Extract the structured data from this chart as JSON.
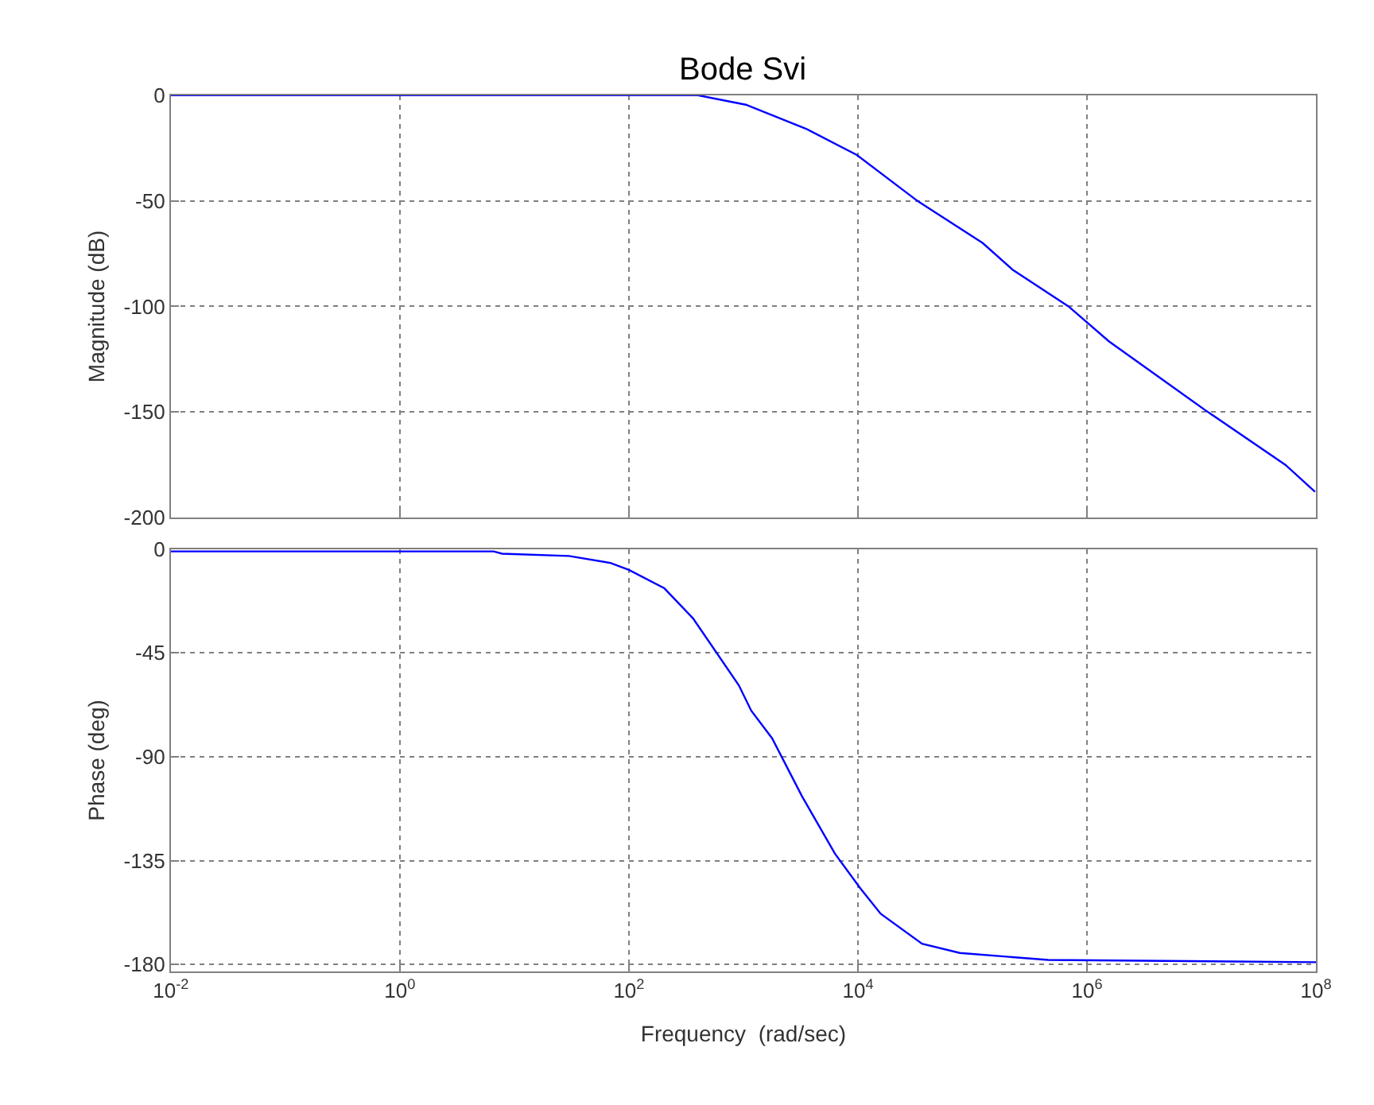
{
  "chart_data": [
    {
      "type": "line",
      "title": "Bode Svi",
      "ylabel": "Magnitude (dB)",
      "log": "x",
      "grid": true,
      "tick_labels": "y",
      "marker": "none",
      "line_style": "solid",
      "xlim": [
        0.01,
        100000000
      ],
      "xticks": [
        {
          "value": 0.01,
          "label": null
        },
        {
          "value": 1,
          "label": null
        },
        {
          "value": 100,
          "label": null
        },
        {
          "value": 10000,
          "label": null
        },
        {
          "value": 1000000,
          "label": null
        },
        {
          "value": 100000000,
          "label": null
        }
      ],
      "ylim": [
        -200,
        0
      ],
      "yticks": [
        0,
        -50,
        -100,
        -150,
        -200
      ],
      "series": [
        {
          "color": "#0000ff",
          "x": [
            0.01,
            1,
            100,
            400,
            1050,
            3500,
            9800,
            33000,
            123000,
            224000,
            690000,
            1550000,
            10700000,
            54000000,
            98000000
          ],
          "values": [
            0,
            0,
            0,
            0,
            -4.5,
            -15.8,
            -28.3,
            -50,
            -70,
            -82.6,
            -100,
            -116.5,
            -149,
            -175,
            -187.8
          ]
        }
      ]
    },
    {
      "type": "line",
      "xlabel": "Frequency  (rad/sec)",
      "ylabel": "Phase (deg)",
      "log": "x",
      "grid": true,
      "marker": "none",
      "line_style": "solid",
      "xlim": [
        0.01,
        100000000
      ],
      "xticks": [
        {
          "value": 0.01,
          "label": "10$^{-2}$"
        },
        {
          "value": 1,
          "label": "10$^{0}$"
        },
        {
          "value": 100,
          "label": "10$^{2}$"
        },
        {
          "value": 10000,
          "label": "10$^{4}$"
        },
        {
          "value": 1000000,
          "label": "10$^{6}$"
        },
        {
          "value": 100000000,
          "label": "10$^{8}$"
        }
      ],
      "ylim": [
        -183,
        0
      ],
      "yticks": [
        0,
        -45,
        -90,
        -135,
        -180
      ],
      "series": [
        {
          "color": "#0000ff",
          "x": [
            0.01,
            6.6,
            7.8,
            30,
            69,
            100,
            204,
            363,
            912,
            1170,
            1780,
            3240,
            6300,
            10500,
            15800,
            36300,
            77600,
            457000,
            100000000
          ],
          "values": [
            -1,
            -1,
            -2,
            -3,
            -6,
            -9,
            -17,
            -30,
            -59,
            -70,
            -82,
            -107,
            -132,
            -147,
            -158,
            -171,
            -175,
            -178,
            -179
          ]
        }
      ]
    }
  ]
}
